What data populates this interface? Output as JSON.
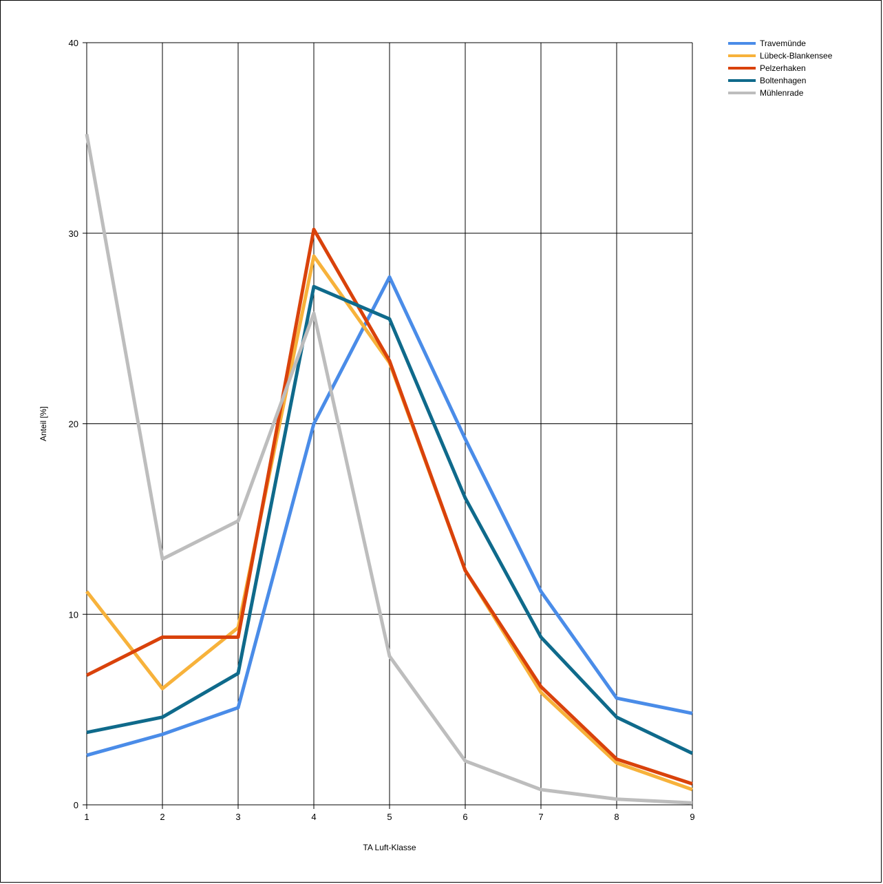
{
  "chart_data": {
    "type": "line",
    "title": "",
    "xlabel": "TA Luft-Klasse",
    "ylabel": "Anteil [%]",
    "x": [
      1,
      2,
      3,
      4,
      5,
      6,
      7,
      8,
      9
    ],
    "xlim": [
      1,
      9
    ],
    "ylim": [
      0,
      40
    ],
    "x_ticks": [
      "1",
      "2",
      "3",
      "4",
      "5",
      "6",
      "7",
      "8",
      "9"
    ],
    "y_ticks": [
      "0",
      "10",
      "20",
      "30",
      "40"
    ],
    "grid": true,
    "legend_position": "top-right",
    "series": [
      {
        "name": "Travemünde",
        "color": "#4a8ce8",
        "values": [
          2.6,
          3.7,
          5.1,
          20.0,
          27.7,
          19.2,
          11.2,
          5.6,
          4.8
        ]
      },
      {
        "name": "Lübeck-Blankensee",
        "color": "#f7b23b",
        "values": [
          11.2,
          6.1,
          9.3,
          28.8,
          23.2,
          12.3,
          5.9,
          2.2,
          0.8
        ]
      },
      {
        "name": "Pelzerhaken",
        "color": "#d9420b",
        "values": [
          6.8,
          8.8,
          8.8,
          30.2,
          23.3,
          12.3,
          6.2,
          2.4,
          1.1
        ]
      },
      {
        "name": "Boltenhagen",
        "color": "#0f6a8b",
        "values": [
          3.8,
          4.6,
          6.9,
          27.2,
          25.5,
          16.1,
          8.8,
          4.6,
          2.7
        ]
      },
      {
        "name": "Mühlenrade",
        "color": "#bdbdbd",
        "values": [
          35.2,
          12.9,
          14.9,
          25.8,
          7.8,
          2.3,
          0.8,
          0.3,
          0.1
        ]
      }
    ]
  }
}
